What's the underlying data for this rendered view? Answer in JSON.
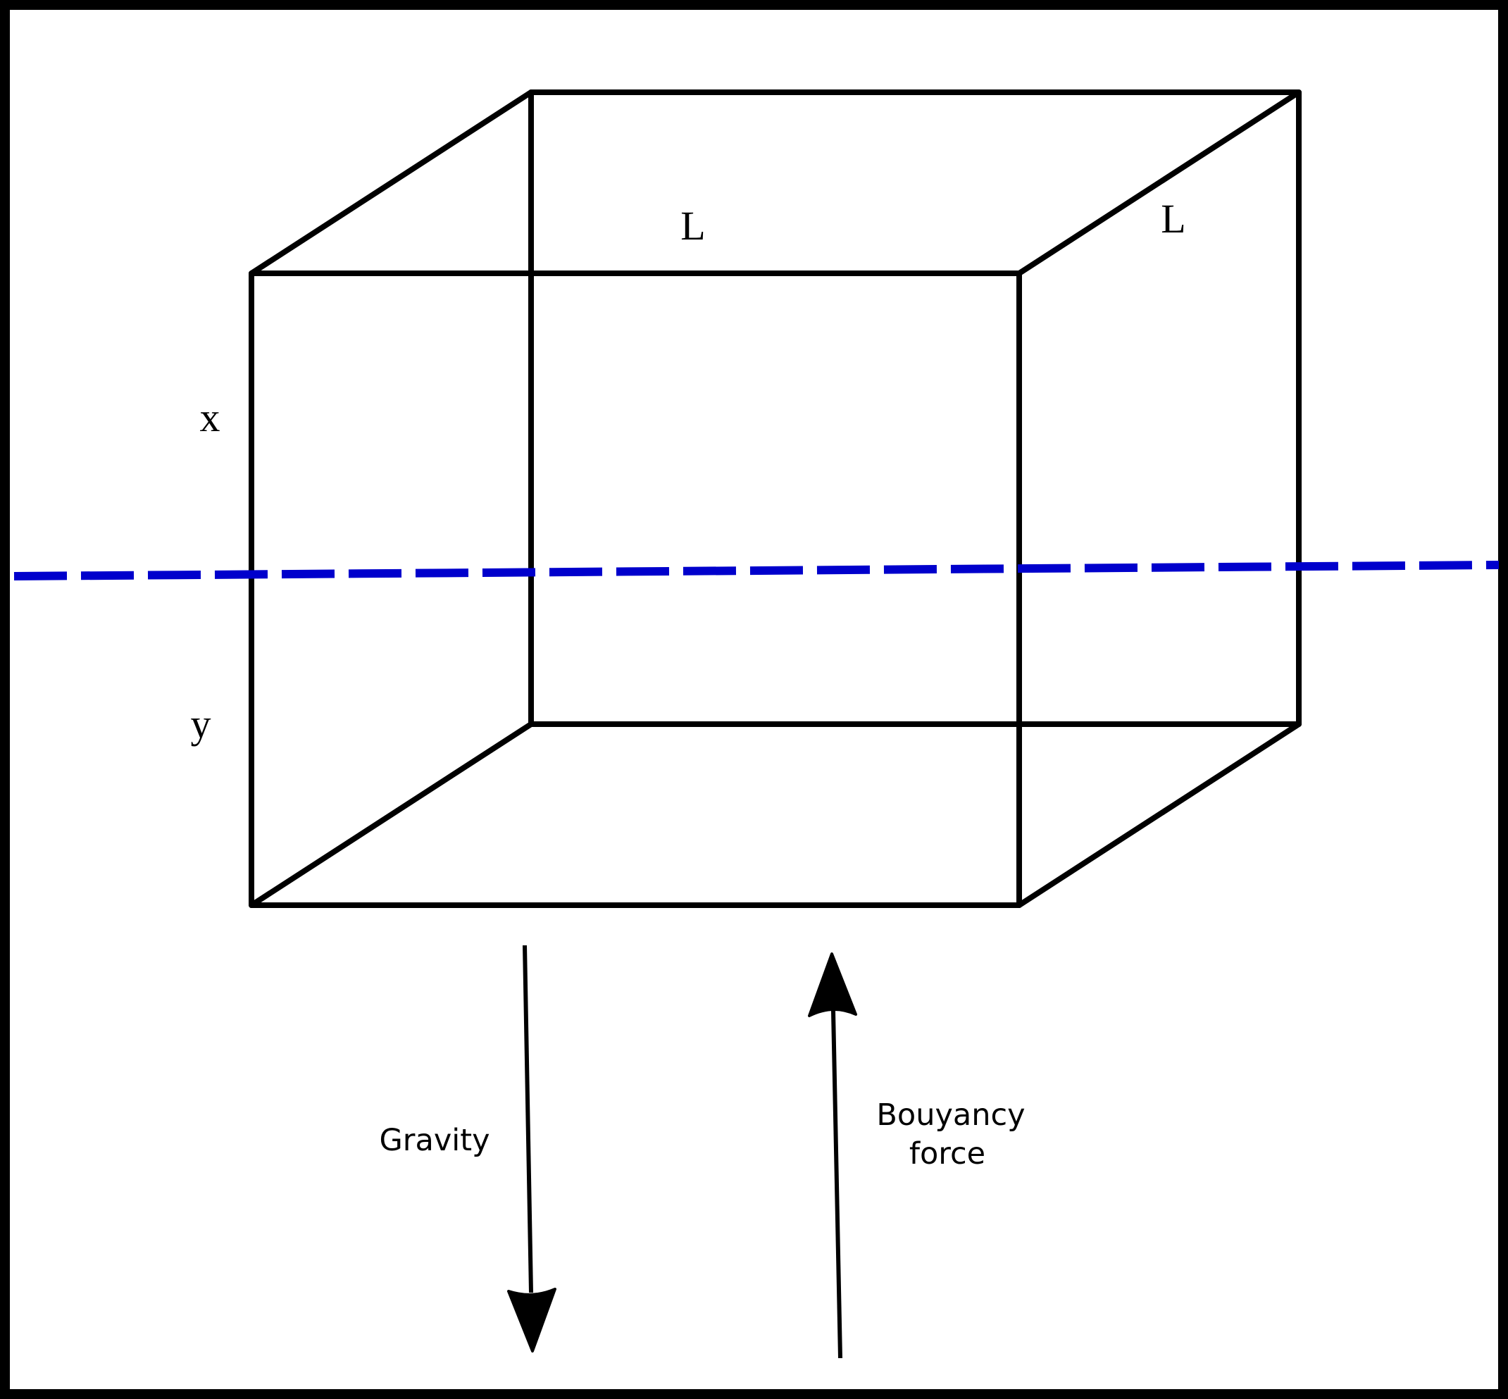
{
  "labels": {
    "length_front": "L",
    "length_depth": "L",
    "height_above_water": "x",
    "height_below_water": "y",
    "gravity": "Gravity",
    "buoyancy_line1": "Bouyancy",
    "buoyancy_line2": "force"
  },
  "colors": {
    "frame": "#000000",
    "cube_edges": "#000000",
    "waterline": "#0000cc",
    "arrows": "#000000",
    "background": "#ffffff"
  },
  "icons": {
    "gravity_arrow": "arrow-down-icon",
    "buoyancy_arrow": "arrow-up-icon"
  }
}
